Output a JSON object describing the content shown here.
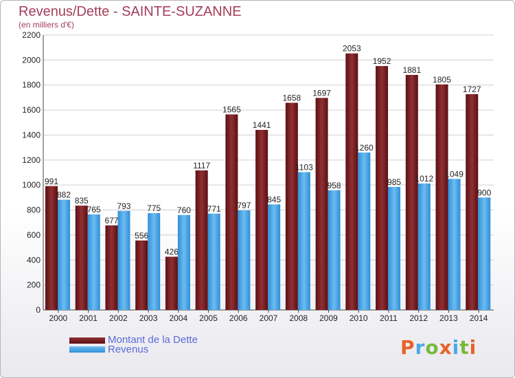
{
  "chart_data": {
    "type": "bar",
    "title": "Revenus/Dette - SAINTE-SUZANNE",
    "subtitle": "(en milliers d'€)",
    "categories": [
      "2000",
      "2001",
      "2002",
      "2003",
      "2004",
      "2005",
      "2006",
      "2007",
      "2008",
      "2009",
      "2010",
      "2011",
      "2012",
      "2013",
      "2014"
    ],
    "series": [
      {
        "name": "Montant de la Dette",
        "color": "#7a1f22",
        "values": [
          991,
          835,
          677,
          556,
          426,
          1117,
          1565,
          1441,
          1658,
          1697,
          2053,
          1952,
          1881,
          1805,
          1727
        ]
      },
      {
        "name": "Revenus",
        "color": "#4aa8e6",
        "values": [
          882,
          765,
          793,
          775,
          760,
          771,
          797,
          845,
          1103,
          958,
          1260,
          985,
          1012,
          1049,
          900
        ]
      }
    ],
    "ylim": [
      0,
      2200
    ],
    "yticks": [
      0,
      200,
      400,
      600,
      800,
      1000,
      1200,
      1400,
      1600,
      1800,
      2000,
      2200
    ],
    "grid": true,
    "legend_position": "bottom-left"
  },
  "logo": {
    "text": "Proxiti",
    "colors": [
      "#e8622a",
      "#4aa8e6",
      "#7ab83c",
      "#e8622a",
      "#4aa8e6",
      "#7ab83c",
      "#e8622a"
    ]
  }
}
